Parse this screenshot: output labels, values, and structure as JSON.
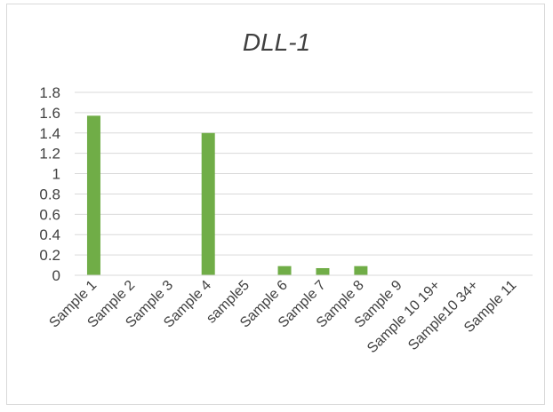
{
  "chart_data": {
    "type": "bar",
    "title": "DLL-1",
    "xlabel": "",
    "ylabel": "",
    "categories": [
      "Sample 1",
      "Sample 2",
      "Sample 3",
      "Sample 4",
      "sample5",
      "Sample 6",
      "Sample 7",
      "Sample 8",
      "Sample 9",
      "Sample 10 19+",
      "Sample10 34+",
      "Sample 11"
    ],
    "values": [
      1.57,
      0,
      0,
      1.4,
      0,
      0.09,
      0.07,
      0.09,
      0,
      0,
      0,
      0
    ],
    "ylim": [
      0,
      1.8
    ],
    "yticks": [
      "0",
      "0.2",
      "0.4",
      "0.6",
      "0.8",
      "1",
      "1.2",
      "1.4",
      "1.6",
      "1.8"
    ],
    "grid": true,
    "legend": "none",
    "bar_color": "#70ad47",
    "grid_color": "#d9d9d9"
  }
}
